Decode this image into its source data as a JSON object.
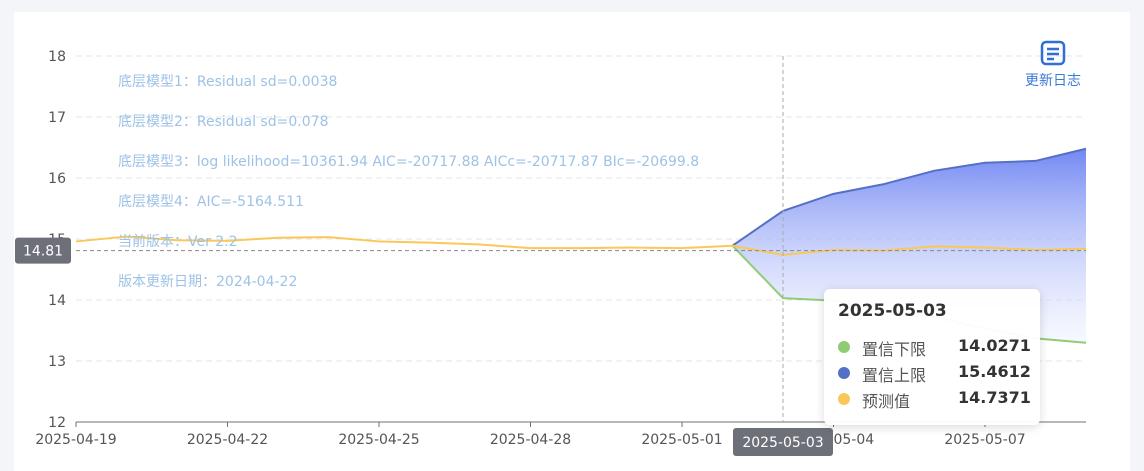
{
  "changelog": {
    "label": "更新日志",
    "icon": "changelog-icon"
  },
  "notes": [
    "底层模型1：Residual sd=0.0038",
    "底层模型2：Residual sd=0.078",
    "底层模型3：log likelihood=10361.94 AIC=-20717.88 AICc=-20717.87 BIc=-20699.8",
    "底层模型4：AIC=-5164.511",
    "当前版本：Ver 2.2",
    "版本更新日期：2024-04-22"
  ],
  "tooltip": {
    "date": "2025-05-03",
    "rows": [
      {
        "name": "置信下限",
        "value": "14.0271",
        "color": "#91cc75"
      },
      {
        "name": "置信上限",
        "value": "15.4612",
        "color": "#5470c6"
      },
      {
        "name": "预测值",
        "value": "14.7371",
        "color": "#fac858"
      }
    ]
  },
  "chart_data": {
    "type": "line",
    "x": [
      "2025-04-19",
      "2025-04-20",
      "2025-04-21",
      "2025-04-22",
      "2025-04-23",
      "2025-04-24",
      "2025-04-25",
      "2025-04-26",
      "2025-04-27",
      "2025-04-28",
      "2025-04-29",
      "2025-04-30",
      "2025-05-01",
      "2025-05-02",
      "2025-05-03",
      "2025-05-04",
      "2025-05-05",
      "2025-05-06",
      "2025-05-07",
      "2025-05-08",
      "2025-05-09"
    ],
    "x_tick_labels": [
      "2025-04-19",
      "2025-04-22",
      "2025-04-25",
      "2025-04-28",
      "2025-05-01",
      "2025-05-04",
      "2025-05-07"
    ],
    "ylim": [
      12,
      18
    ],
    "y_ticks": [
      12,
      13,
      14,
      15,
      16,
      17,
      18
    ],
    "grid": true,
    "y_pointer_label": "14.81",
    "x_pointer_label": "2025-05-03",
    "series": [
      {
        "key": "predicted",
        "color": "#fac858",
        "values": [
          14.96,
          15.04,
          14.98,
          14.97,
          15.02,
          15.03,
          14.96,
          14.94,
          14.91,
          14.85,
          14.85,
          14.86,
          14.85,
          14.89,
          14.74,
          14.82,
          14.81,
          14.88,
          14.86,
          14.82,
          14.84
        ]
      },
      {
        "key": "upper",
        "color": "#5470c6",
        "values": [
          null,
          null,
          null,
          null,
          null,
          null,
          null,
          null,
          null,
          null,
          null,
          null,
          null,
          14.89,
          15.46,
          15.74,
          15.9,
          16.12,
          16.25,
          16.28,
          16.48
        ]
      },
      {
        "key": "lower",
        "color": "#91cc75",
        "values": [
          null,
          null,
          null,
          null,
          null,
          null,
          null,
          null,
          null,
          null,
          null,
          null,
          null,
          14.89,
          14.03,
          13.99,
          13.82,
          13.73,
          13.53,
          13.37,
          13.3
        ]
      }
    ]
  }
}
